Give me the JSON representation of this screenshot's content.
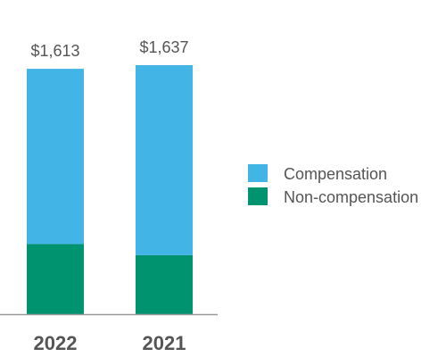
{
  "chart_data": {
    "type": "bar",
    "stacked": true,
    "title": "",
    "xlabel": "",
    "ylabel": "",
    "ylim": [
      0,
      1637
    ],
    "grid": false,
    "legend_position": "right",
    "categories": [
      "2022",
      "2021"
    ],
    "totals": [
      1613,
      1637
    ],
    "total_labels": [
      "$1,613",
      "$1,637"
    ],
    "series": [
      {
        "name": "Non-compensation",
        "values": [
          461,
          388
        ],
        "color": "#009370"
      },
      {
        "name": "Compensation",
        "values": [
          1152,
          1249
        ],
        "color": "#42B4E6"
      }
    ],
    "legend": [
      {
        "name": "Compensation",
        "color": "#42B4E6"
      },
      {
        "name": "Non-compensation",
        "color": "#009370"
      }
    ],
    "axis_color": "#999999"
  }
}
